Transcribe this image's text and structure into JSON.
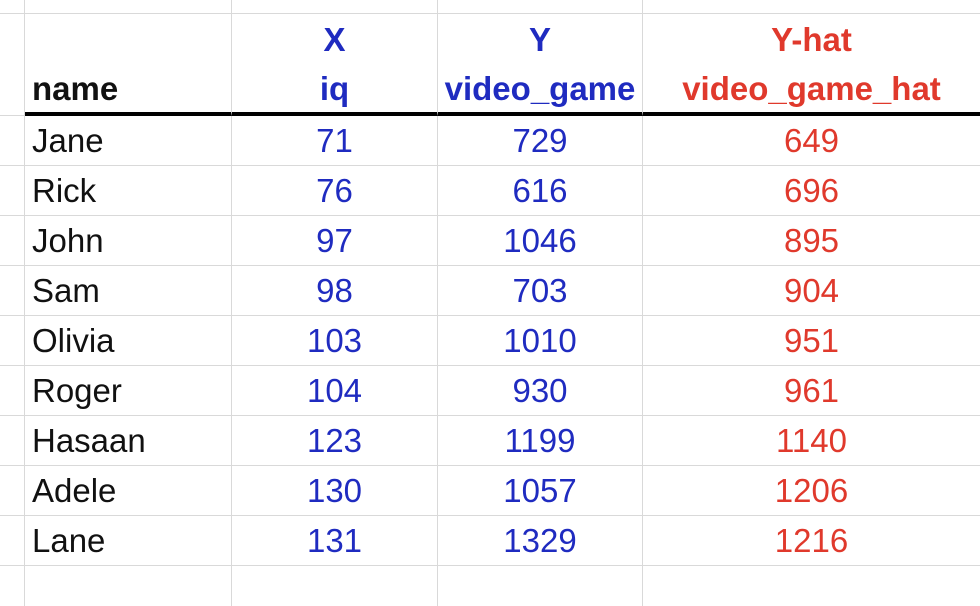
{
  "header": {
    "variable_labels": {
      "iq": "X",
      "video_game": "Y",
      "video_game_hat": "Y-hat"
    },
    "columns": {
      "name": "name",
      "iq": "iq",
      "video_game": "video_game",
      "video_game_hat": "video_game_hat"
    }
  },
  "rows": [
    {
      "name": "Jane",
      "iq": "71",
      "video_game": "729",
      "video_game_hat": "649"
    },
    {
      "name": "Rick",
      "iq": "76",
      "video_game": "616",
      "video_game_hat": "696"
    },
    {
      "name": "John",
      "iq": "97",
      "video_game": "1046",
      "video_game_hat": "895"
    },
    {
      "name": "Sam",
      "iq": "98",
      "video_game": "703",
      "video_game_hat": "904"
    },
    {
      "name": "Olivia",
      "iq": "103",
      "video_game": "1010",
      "video_game_hat": "951"
    },
    {
      "name": "Roger",
      "iq": "104",
      "video_game": "930",
      "video_game_hat": "961"
    },
    {
      "name": "Hasaan",
      "iq": "123",
      "video_game": "1199",
      "video_game_hat": "1140"
    },
    {
      "name": "Adele",
      "iq": "130",
      "video_game": "1057",
      "video_game_hat": "1206"
    },
    {
      "name": "Lane",
      "iq": "131",
      "video_game": "1329",
      "video_game_hat": "1216"
    }
  ],
  "colors": {
    "observed": "#1f2bc0",
    "predicted": "#e0392c",
    "gridline": "#d9d9d9",
    "header_rule": "#000000"
  }
}
